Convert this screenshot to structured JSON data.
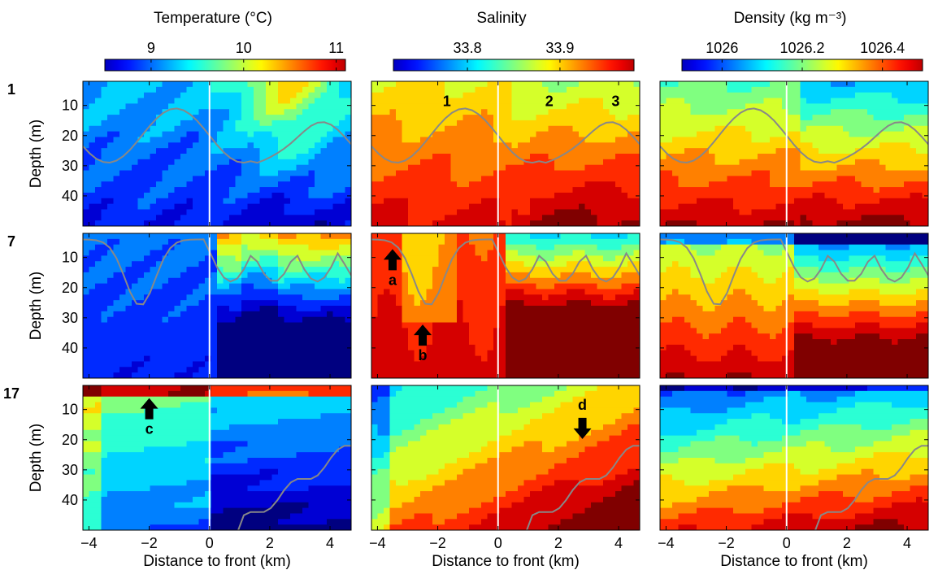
{
  "figure": {
    "columns": [
      {
        "key": "temperature",
        "title": "Temperature (°C)",
        "ticks": [
          "9",
          "10",
          "11"
        ],
        "range": [
          8.5,
          11.1
        ],
        "tick_values": [
          9,
          10,
          11
        ]
      },
      {
        "key": "salinity",
        "title": "Salinity",
        "ticks": [
          "33.8",
          "33.9"
        ],
        "range": [
          33.72,
          33.98
        ],
        "tick_values": [
          33.8,
          33.9
        ]
      },
      {
        "key": "density",
        "title": "Density (kg m⁻³)",
        "ticks": [
          "1026",
          "1026.2",
          "1026.4"
        ],
        "range": [
          1025.9,
          1026.5
        ],
        "tick_values": [
          1026,
          1026.2,
          1026.4
        ]
      }
    ],
    "rows": [
      {
        "label": "1",
        "annotations": [
          {
            "col": 1,
            "type": "text",
            "text": "1",
            "x": -1.7,
            "y": 8
          },
          {
            "col": 1,
            "type": "text",
            "text": "2",
            "x": 1.7,
            "y": 8
          },
          {
            "col": 1,
            "type": "text",
            "text": "3",
            "x": 3.9,
            "y": 8
          }
        ]
      },
      {
        "label": "7",
        "annotations": [
          {
            "col": 1,
            "type": "arrow-up",
            "text": "a",
            "x": -3.5,
            "y": 11
          },
          {
            "col": 1,
            "type": "arrow-up",
            "text": "b",
            "x": -2.5,
            "y": 36
          }
        ]
      },
      {
        "label": "17",
        "annotations": [
          {
            "col": 0,
            "type": "arrow-up",
            "text": "c",
            "x": -2.0,
            "y": 10
          },
          {
            "col": 1,
            "type": "arrow-down",
            "text": "d",
            "x": 2.8,
            "y": 16
          }
        ]
      }
    ],
    "ylabel": "Depth (m)",
    "xlabel": "Distance to front (km)"
  },
  "chart_data": {
    "type": "heatmap",
    "x_range": [
      -4.2,
      4.7
    ],
    "y_range": [
      2,
      50
    ],
    "x_ticks": [
      "−4",
      "−2",
      "0",
      "2",
      "4"
    ],
    "x_tick_values": [
      -4,
      -2,
      0,
      2,
      4
    ],
    "y_ticks": [
      "10",
      "20",
      "30",
      "40"
    ],
    "y_tick_values": [
      10,
      20,
      30,
      40
    ],
    "y_reversed": true,
    "front_line_x": 0,
    "colormap": "jet",
    "colorbar_position": "top",
    "contour_color": "#888888",
    "panels": [
      {
        "row": "1",
        "variable": "temperature",
        "description": "cool water west of front, warm surface tongue between 0 and 4 km reaching ~30 m"
      },
      {
        "row": "1",
        "variable": "salinity",
        "description": "intermediate salinity 33.85-33.9 near surface, saltier below 25 m east of front"
      },
      {
        "row": "1",
        "variable": "density",
        "description": "stratified, lighter surface layer east of front"
      },
      {
        "row": "7",
        "variable": "temperature",
        "description": "cold mixed water west, warm shallow layer east of front"
      },
      {
        "row": "7",
        "variable": "salinity",
        "description": "salty water west, fresh intrusion near -2.5 km, fresh surface east"
      },
      {
        "row": "7",
        "variable": "density",
        "description": "dense core at 2 km below 20 m"
      },
      {
        "row": "17",
        "variable": "temperature",
        "description": "warm thin surface layer, cold deep water east of front"
      },
      {
        "row": "17",
        "variable": "salinity",
        "description": "fresh on west edge, salty deep water east"
      },
      {
        "row": "17",
        "variable": "density",
        "description": "light surface layer, dense bottom east of front"
      }
    ]
  }
}
